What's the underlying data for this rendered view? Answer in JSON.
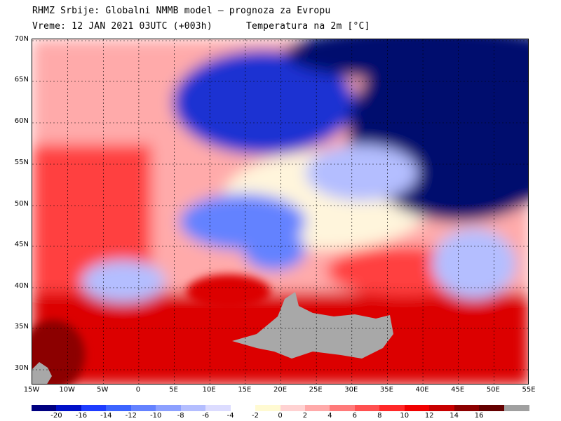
{
  "title": {
    "line1": "RHMZ Srbije: Globalni NMMB model — prognoza za Evropu",
    "line2": "Vreme: 12 JAN 2021 03UTC (+003h)      Temperatura na 2m [°C]"
  },
  "lat_labels": [
    "70N",
    "65N",
    "60N",
    "55N",
    "50N",
    "45N",
    "40N",
    "35N",
    "30N"
  ],
  "lon_labels": [
    "15W",
    "10W",
    "5W",
    "0",
    "5E",
    "10E",
    "15E",
    "20E",
    "25E",
    "30E",
    "35E",
    "40E",
    "45E",
    "50E",
    "55E"
  ],
  "legend": {
    "colors": [
      "#000080",
      "#0010c8",
      "#1e3cff",
      "#3c64ff",
      "#6482ff",
      "#8ca0ff",
      "#b4beff",
      "#dcdcff",
      "#ffffff",
      "#fffad2",
      "#ffd2d2",
      "#ffaaaa",
      "#ff7a7a",
      "#ff5050",
      "#ff2828",
      "#f00000",
      "#c80000",
      "#8c0000",
      "#640000",
      "#a0a0a0"
    ],
    "labels": [
      "-20",
      "-16",
      "-14",
      "-12",
      "-10",
      "-8",
      "-6",
      "-4",
      "-2",
      "0",
      "2",
      "4",
      "6",
      "8",
      "10",
      "12",
      "14",
      "16"
    ]
  },
  "map_colors": {
    "very_cold": "#000a6e",
    "cold": "#1e32d2",
    "cool": "#6482ff",
    "chilly": "#b4beff",
    "near_zero": "#fff5dc",
    "mild": "#ffaaaa",
    "warm": "#ff4040",
    "hot": "#dc0000",
    "very_hot": "#8c0000",
    "sea_mask": "#a8a8a8"
  }
}
